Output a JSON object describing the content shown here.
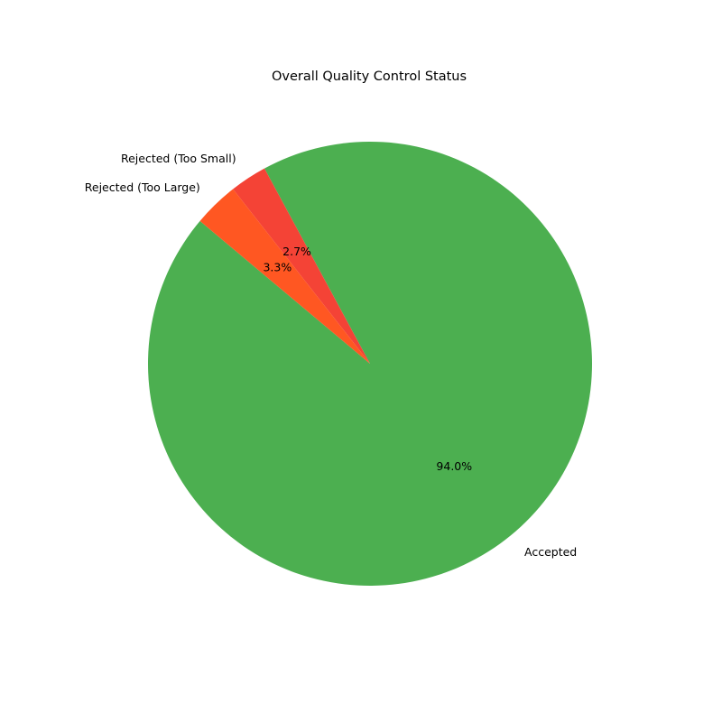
{
  "chart_data": {
    "type": "pie",
    "title": "Overall Quality Control Status",
    "start_angle_deg": 140,
    "direction": "counterclockwise",
    "slices": [
      {
        "label": "Accepted",
        "value": 94.0,
        "pct_label": "94.0%",
        "color": "#4CAF50"
      },
      {
        "label": "Rejected (Too Small)",
        "value": 2.7,
        "pct_label": "2.7%",
        "color": "#F44336"
      },
      {
        "label": "Rejected (Too Large)",
        "value": 3.3,
        "pct_label": "3.3%",
        "color": "#FF5722"
      }
    ]
  }
}
